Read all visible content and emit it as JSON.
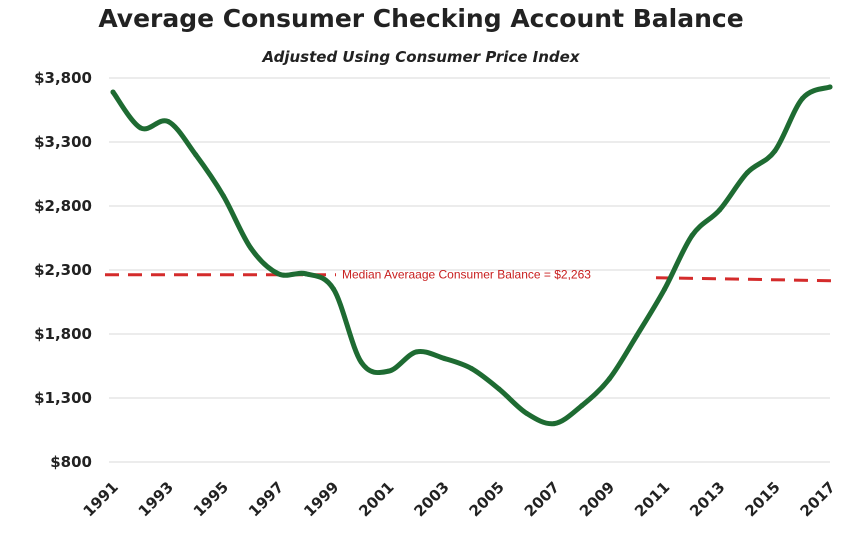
{
  "chart_data": {
    "type": "line",
    "title": "Average Consumer Checking Account Balance",
    "subtitle": "Adjusted Using Consumer Price Index",
    "xlabel": "",
    "ylabel": "",
    "ylim": [
      800,
      3800
    ],
    "xlim": [
      1991,
      2017
    ],
    "y_ticks": [
      "$800",
      "$1,300",
      "$1,800",
      "$2,300",
      "$2,800",
      "$3,300",
      "$3,800"
    ],
    "x_ticks": [
      "1991",
      "1993",
      "1995",
      "1997",
      "1999",
      "2001",
      "2003",
      "2005",
      "2007",
      "2009",
      "2011",
      "2013",
      "2015",
      "2017"
    ],
    "grid": true,
    "series": [
      {
        "color": "#1e6b32",
        "x": [
          1991,
          1992,
          1993,
          1994,
          1995,
          1996,
          1997,
          1998,
          1999,
          2000,
          2001,
          2002,
          2003,
          2004,
          2005,
          2006,
          2007,
          2008,
          2009,
          2010,
          2011,
          2012,
          2013,
          2014,
          2015,
          2016,
          2017
        ],
        "y": [
          3690,
          3410,
          3460,
          3200,
          2880,
          2470,
          2270,
          2270,
          2150,
          1580,
          1510,
          1660,
          1610,
          1530,
          1370,
          1180,
          1100,
          1240,
          1450,
          1790,
          2150,
          2570,
          2770,
          3060,
          3230,
          3640,
          3730
        ]
      }
    ],
    "reference_line": {
      "value": 2263,
      "label": "Median Averaage Consumer Balance = $2,263",
      "color": "#d42b2b",
      "style": "dashed"
    }
  }
}
